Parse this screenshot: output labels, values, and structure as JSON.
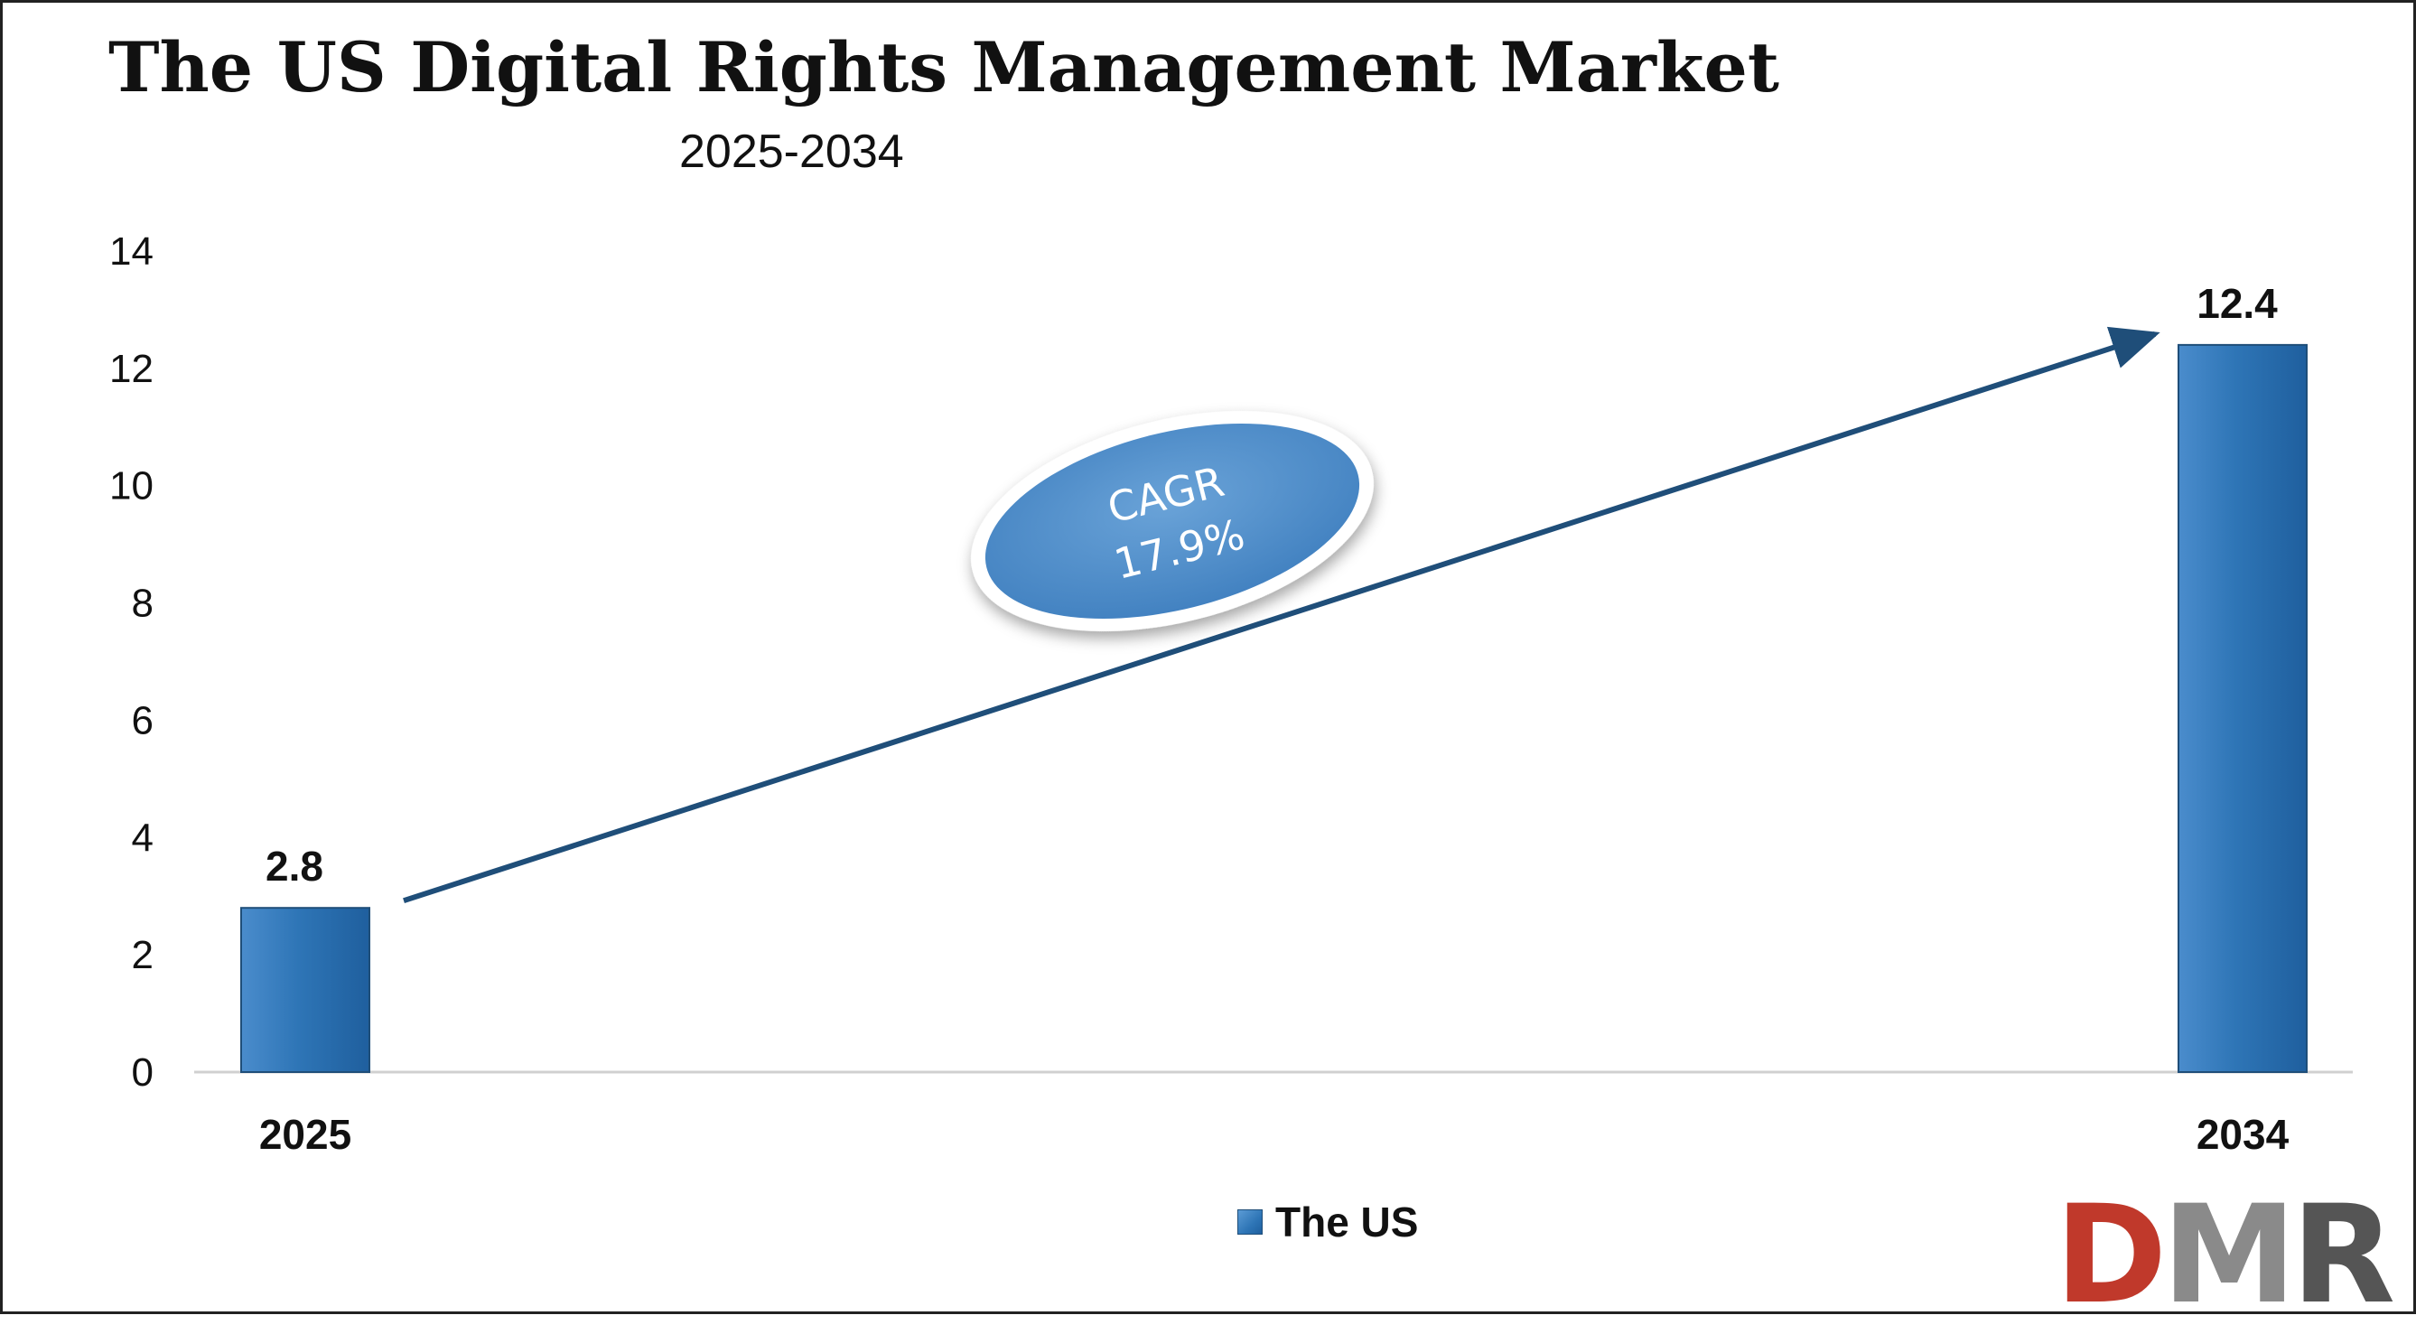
{
  "chart_data": {
    "type": "bar",
    "title": "The US Digital Rights Management Market",
    "subtitle": "2025-2034",
    "categories": [
      "2025",
      "2034"
    ],
    "series": [
      {
        "name": "The US",
        "values": [
          2.8,
          12.4
        ]
      }
    ],
    "data_labels": [
      "2.8",
      "12.4"
    ],
    "ylim": [
      0,
      14
    ],
    "yticks": [
      "0",
      "2",
      "4",
      "6",
      "8",
      "10",
      "12",
      "14"
    ],
    "xlabel": "",
    "ylabel": "",
    "grid": false,
    "legend_position": "bottom",
    "annotation": {
      "line1": "CAGR",
      "line2": "17.9%"
    },
    "colors": {
      "bar": "#2e75b6",
      "arrow": "#1f4e79",
      "ellipse": "#5b93c9"
    }
  },
  "logo": {
    "d": "D",
    "m": "M",
    "r": "R"
  }
}
